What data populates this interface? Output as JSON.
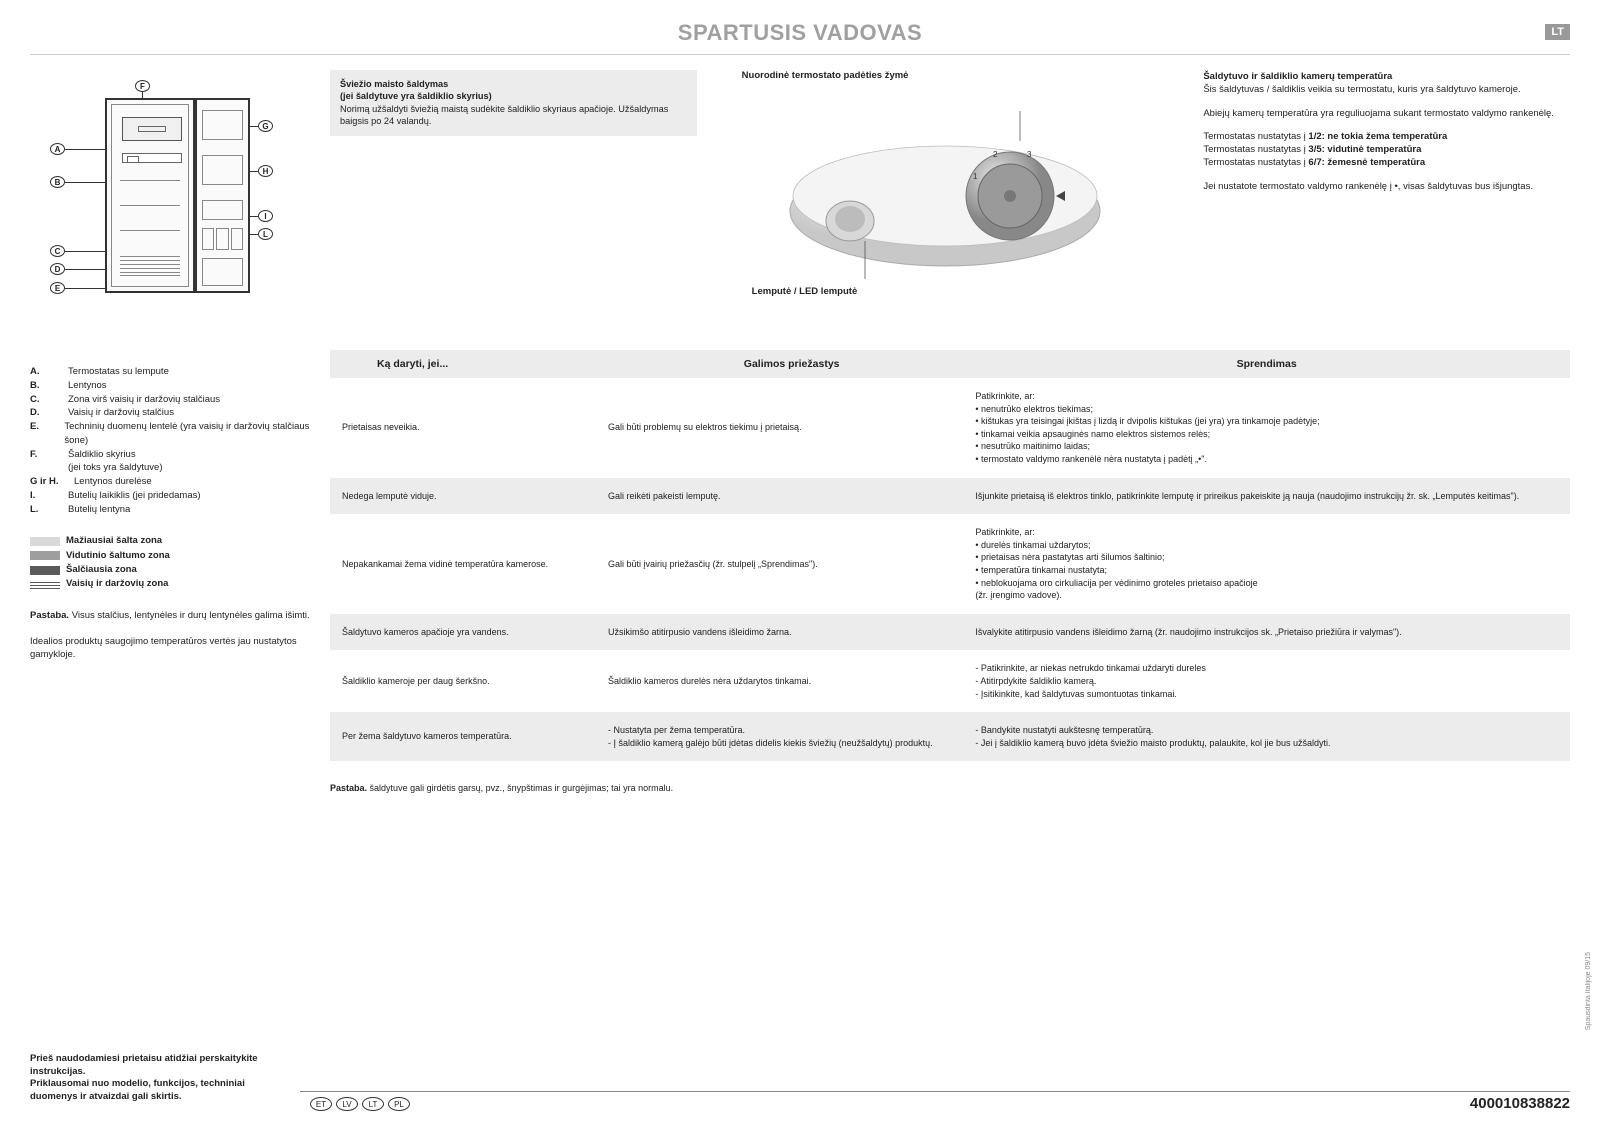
{
  "header": {
    "title": "SPARTUSIS VADOVAS",
    "lang_badge": "LT"
  },
  "diagram": {
    "labels": [
      "A",
      "B",
      "C",
      "D",
      "E",
      "F",
      "G",
      "H",
      "I",
      "L"
    ]
  },
  "legend": [
    {
      "letter": "A.",
      "text": "Termostatas su lempute"
    },
    {
      "letter": "B.",
      "text": "Lentynos"
    },
    {
      "letter": "C.",
      "text": "Zona virš vaisių ir daržovių stalčiaus"
    },
    {
      "letter": "D.",
      "text": "Vaisių ir daržovių stalčius"
    },
    {
      "letter": "E.",
      "text": "Techninių duomenų lentelė (yra vaisių ir daržovių stalčiaus šone)"
    },
    {
      "letter": "F.",
      "text": "Šaldiklio skyrius\n(jei toks yra šaldytuve)"
    },
    {
      "letter": "G ir H.",
      "text": "Lentynos durelėse"
    },
    {
      "letter": "I.",
      "text": "Butelių laikiklis (jei pridedamas)"
    },
    {
      "letter": "L.",
      "text": "Butelių lentyna"
    }
  ],
  "zones": [
    {
      "label": "Mažiausiai šalta zona",
      "color": "#d9d9d9"
    },
    {
      "label": "Vidutinio šaltumo zona",
      "color": "#9e9e9e"
    },
    {
      "label": "Šalčiausia zona",
      "color": "#5a5a5a"
    },
    {
      "label": "Vaisių ir daržovių zona",
      "pattern": true
    }
  ],
  "notes": {
    "note1_bold": "Pastaba.",
    "note1_text": "Visus stalčius, lentynėles ir durų lentynėles galima išimti.",
    "note2": "Idealios produktų saugojimo temperatūros vertės jau nustatytos gamykloje."
  },
  "bottom_warning": {
    "line1": "Prieš naudodamiesi prietaisu atidžiai perskaitykite instrukcijas.",
    "line2": "Priklausomai nuo modelio, funkcijos, techniniai duomenys ir atvaizdai gali skirtis."
  },
  "info_boxes": {
    "freezing": {
      "title": "Šviežio maisto šaldymas",
      "subtitle": "(jei šaldytuve yra šaldiklio skyrius)",
      "text": "Norimą užšaldyti šviežią maistą sudėkite šaldiklio skyriaus apačioje. Užšaldymas baigsis po 24 valandų."
    },
    "knob_ref": "Nuorodinė termostato padėties žymė",
    "knob_light": "Lemputė / LED lemputė"
  },
  "temperature": {
    "title": "Šaldytuvo ir šaldiklio kamerų temperatūra",
    "p1": "Šis šaldytuvas / šaldiklis veikia su termostatu, kuris yra šaldytuvo kameroje.",
    "p2": "Abiejų kamerų temperatūra yra reguliuojama sukant termostato valdymo rankenėlę.",
    "settings": [
      {
        "pre": "Termostatas nustatytas į ",
        "bold": "1/2: ne tokia žema temperatūra"
      },
      {
        "pre": "Termostatas nustatytas į ",
        "bold": "3/5: vidutinė temperatūra"
      },
      {
        "pre": "Termostatas nustatytas į ",
        "bold": "6/7: žemesnė temperatūra"
      }
    ],
    "p3": "Jei nustatote termostato valdymo rankenėlę į •, visas šaldytuvas bus išjungtas."
  },
  "troubleshoot": {
    "headers": {
      "c1": "Ką daryti, jei...",
      "c2": "Galimos priežastys",
      "c3": "Sprendimas"
    },
    "rows": [
      {
        "problem": "Prietaisas neveikia.",
        "cause": "Gali būti problemų su elektros tiekimu į prietaisą.",
        "solution": "Patikrinkite, ar:\n• nenutrūko elektros tiekimas;\n• kištukas yra teisingai įkištas į lizdą ir dvipolis kištukas (jei yra) yra tinkamoje padėtyje;\n• tinkamai veikia apsauginės namo elektros sistemos relės;\n• nesutrūko maitinimo laidas;\n• termostato valdymo rankenėlė nėra nustatyta į padėtį „•\"."
      },
      {
        "problem": "Nedega lemputė viduje.",
        "cause": "Gali reikėti pakeisti lemputę.",
        "solution": "Išjunkite prietaisą iš elektros tinklo, patikrinkite lemputę ir prireikus pakeiskite ją nauja (naudojimo instrukcijų žr. sk. „Lemputės keitimas\")."
      },
      {
        "problem": "Nepakankamai žema vidinė temperatūra kamerose.",
        "cause": "Gali būti įvairių priežasčių (žr. stulpelį „Sprendimas\").",
        "solution": "Patikrinkite, ar:\n• durelės tinkamai uždarytos;\n• prietaisas nėra pastatytas arti šilumos šaltinio;\n• temperatūra tinkamai nustatyta;\n• neblokuojama oro cirkuliacija per vėdinimo groteles prietaiso apačioje\n  (žr. įrengimo vadove)."
      },
      {
        "problem": "Šaldytuvo kameros apačioje yra vandens.",
        "cause": "Užsikimšo atitirpusio vandens išleidimo žarna.",
        "solution": "Išvalykite atitirpusio vandens išleidimo žarną (žr. naudojimo instrukcijos sk. „Prietaiso priežiūra ir valymas\")."
      },
      {
        "problem": "Šaldiklio kameroje per daug šerkšno.",
        "cause": "Šaldiklio kameros durelės nėra uždarytos tinkamai.",
        "solution": "- Patikrinkite, ar niekas netrukdo tinkamai uždaryti dureles\n- Atitirpdykite šaldiklio kamerą.\n- Įsitikinkite, kad šaldytuvas sumontuotas tinkamai."
      },
      {
        "problem": "Per žema šaldytuvo kameros temperatūra.",
        "cause": "- Nustatyta per žema temperatūra.\n- Į šaldiklio kamerą galėjo būti įdėtas didelis kiekis šviežių (neužšaldytų) produktų.",
        "solution": "- Bandykite nustatyti aukštesnę temperatūrą.\n- Jei į šaldiklio kamerą buvo įdėta šviežio maisto produktų, palaukite, kol jie bus užšaldyti."
      }
    ],
    "footnote_bold": "Pastaba.",
    "footnote_text": "šaldytuve gali girdėtis garsų, pvz., šnypštimas ir gurgėjimas; tai yra normalu."
  },
  "footer": {
    "langs": [
      "ET",
      "LV",
      "LT",
      "PL"
    ],
    "doc_number": "400010838822",
    "side": "Spausdinta Italijoje    09/15"
  }
}
